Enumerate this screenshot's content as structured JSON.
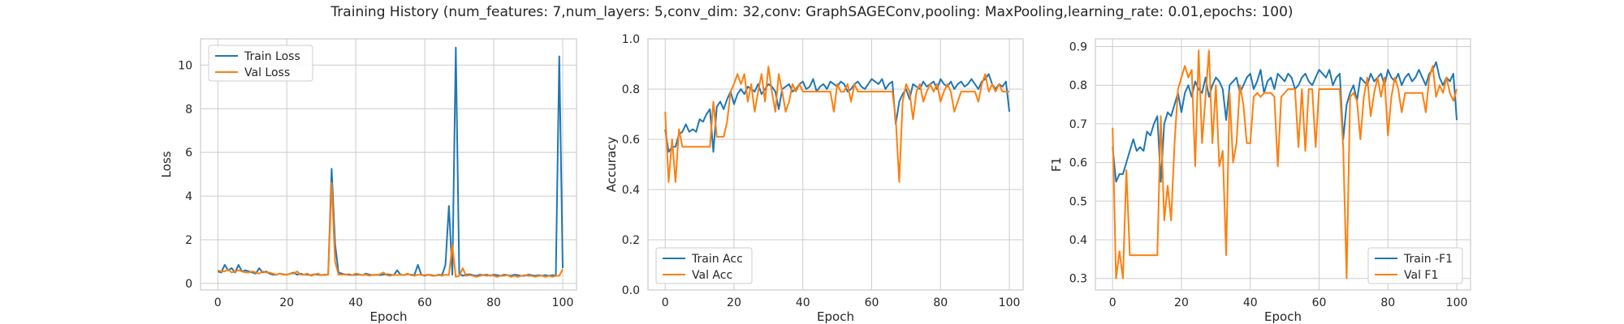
{
  "suptitle": "Training History (num_features: 7,num_layers: 5,conv_dim: 32,conv: GraphSAGEConv,pooling: MaxPooling,learning_rate: 0.01,epochs: 100)",
  "colors": {
    "train": "#1f77b4",
    "val": "#ff7f0e",
    "grid": "#cccccc",
    "spine": "#cccccc"
  },
  "chart_data": [
    {
      "type": "line",
      "xlabel": "Epoch",
      "ylabel": "Loss",
      "xlim": [
        -5,
        104
      ],
      "ylim": [
        -0.3,
        11.2
      ],
      "xticks": [
        0,
        20,
        40,
        60,
        80,
        100
      ],
      "yticks": [
        0,
        2,
        4,
        6,
        8,
        10
      ],
      "xtick_labels": [
        "0",
        "20",
        "40",
        "60",
        "80",
        "100"
      ],
      "ytick_labels": [
        "0",
        "2",
        "4",
        "6",
        "8",
        "10"
      ],
      "grid": true,
      "legend_position": "upper-left",
      "series": [
        {
          "name": "Train Loss",
          "values": [
            0.55,
            0.5,
            0.85,
            0.6,
            0.7,
            0.5,
            0.85,
            0.55,
            0.6,
            0.55,
            0.5,
            0.45,
            0.7,
            0.5,
            0.55,
            0.45,
            0.4,
            0.4,
            0.45,
            0.42,
            0.4,
            0.45,
            0.5,
            0.4,
            0.45,
            0.4,
            0.4,
            0.38,
            0.42,
            0.4,
            0.38,
            0.4,
            0.4,
            5.25,
            1.8,
            0.5,
            0.45,
            0.4,
            0.42,
            0.38,
            0.4,
            0.4,
            0.38,
            0.45,
            0.4,
            0.38,
            0.4,
            0.38,
            0.4,
            0.42,
            0.4,
            0.38,
            0.6,
            0.4,
            0.38,
            0.42,
            0.4,
            0.38,
            0.85,
            0.4,
            0.35,
            0.4,
            0.38,
            0.35,
            0.4,
            0.38,
            0.85,
            3.55,
            0.4,
            10.8,
            0.45,
            0.35,
            0.4,
            0.42,
            0.38,
            0.35,
            0.4,
            0.38,
            0.4,
            0.35,
            0.4,
            0.38,
            0.35,
            0.4,
            0.38,
            0.35,
            0.4,
            0.38,
            0.35,
            0.35,
            0.4,
            0.38,
            0.35,
            0.38,
            0.35,
            0.38,
            0.35,
            0.38,
            0.35,
            10.4,
            0.7
          ]
        },
        {
          "name": "Val Loss",
          "values": [
            0.6,
            0.55,
            0.55,
            0.65,
            0.5,
            0.55,
            0.6,
            0.55,
            0.5,
            0.5,
            0.55,
            0.5,
            0.45,
            0.55,
            0.5,
            0.5,
            0.45,
            0.4,
            0.45,
            0.4,
            0.4,
            0.45,
            0.45,
            0.55,
            0.4,
            0.4,
            0.45,
            0.35,
            0.4,
            0.45,
            0.38,
            0.38,
            0.4,
            4.6,
            1.0,
            0.4,
            0.4,
            0.42,
            0.38,
            0.38,
            0.45,
            0.42,
            0.38,
            0.4,
            0.35,
            0.4,
            0.38,
            0.42,
            0.5,
            0.38,
            0.35,
            0.4,
            0.38,
            0.4,
            0.38,
            0.45,
            0.38,
            0.35,
            0.4,
            0.38,
            0.38,
            0.4,
            0.35,
            0.35,
            0.38,
            0.35,
            0.4,
            0.38,
            1.75,
            0.3,
            0.35,
            0.7,
            0.35,
            0.38,
            0.35,
            0.3,
            0.35,
            0.38,
            0.35,
            0.38,
            0.35,
            0.3,
            0.35,
            0.35,
            0.38,
            0.3,
            0.35,
            0.3,
            0.35,
            0.38,
            0.35,
            0.35,
            0.3,
            0.35,
            0.35,
            0.3,
            0.35,
            0.3,
            0.35,
            0.35,
            0.65
          ]
        }
      ]
    },
    {
      "type": "line",
      "xlabel": "Epoch",
      "ylabel": "Accuracy",
      "xlim": [
        -5,
        104
      ],
      "ylim": [
        0.0,
        1.0
      ],
      "xticks": [
        0,
        20,
        40,
        60,
        80,
        100
      ],
      "yticks": [
        0.0,
        0.2,
        0.4,
        0.6,
        0.8,
        1.0
      ],
      "xtick_labels": [
        "0",
        "20",
        "40",
        "60",
        "80",
        "100"
      ],
      "ytick_labels": [
        "0.0",
        "0.2",
        "0.4",
        "0.6",
        "0.8",
        "1.0"
      ],
      "grid": true,
      "legend_position": "lower-left",
      "series": [
        {
          "name": "Train Acc",
          "values": [
            0.64,
            0.55,
            0.57,
            0.57,
            0.62,
            0.63,
            0.66,
            0.63,
            0.64,
            0.63,
            0.68,
            0.67,
            0.7,
            0.72,
            0.55,
            0.73,
            0.75,
            0.72,
            0.76,
            0.79,
            0.74,
            0.78,
            0.8,
            0.78,
            0.81,
            0.8,
            0.79,
            0.82,
            0.78,
            0.8,
            0.82,
            0.81,
            0.79,
            0.72,
            0.8,
            0.81,
            0.82,
            0.79,
            0.8,
            0.82,
            0.83,
            0.8,
            0.81,
            0.84,
            0.79,
            0.81,
            0.82,
            0.8,
            0.83,
            0.82,
            0.81,
            0.83,
            0.82,
            0.79,
            0.8,
            0.82,
            0.83,
            0.81,
            0.8,
            0.82,
            0.84,
            0.83,
            0.82,
            0.84,
            0.8,
            0.82,
            0.83,
            0.66,
            0.75,
            0.78,
            0.8,
            0.76,
            0.82,
            0.81,
            0.8,
            0.83,
            0.81,
            0.82,
            0.83,
            0.8,
            0.84,
            0.82,
            0.81,
            0.83,
            0.8,
            0.82,
            0.83,
            0.81,
            0.82,
            0.84,
            0.82,
            0.8,
            0.83,
            0.84,
            0.86,
            0.82,
            0.8,
            0.82,
            0.81,
            0.83,
            0.71
          ]
        },
        {
          "name": "Val Acc",
          "values": [
            0.71,
            0.43,
            0.6,
            0.43,
            0.64,
            0.57,
            0.57,
            0.57,
            0.57,
            0.57,
            0.57,
            0.57,
            0.57,
            0.57,
            0.75,
            0.61,
            0.61,
            0.61,
            0.67,
            0.79,
            0.82,
            0.86,
            0.82,
            0.86,
            0.75,
            0.82,
            0.71,
            0.79,
            0.86,
            0.75,
            0.89,
            0.79,
            0.71,
            0.86,
            0.79,
            0.71,
            0.75,
            0.82,
            0.79,
            0.82,
            0.79,
            0.79,
            0.79,
            0.79,
            0.79,
            0.79,
            0.79,
            0.79,
            0.79,
            0.71,
            0.82,
            0.79,
            0.79,
            0.82,
            0.75,
            0.82,
            0.79,
            0.79,
            0.79,
            0.79,
            0.79,
            0.79,
            0.79,
            0.79,
            0.79,
            0.79,
            0.79,
            0.68,
            0.43,
            0.75,
            0.82,
            0.79,
            0.68,
            0.79,
            0.82,
            0.75,
            0.79,
            0.82,
            0.79,
            0.82,
            0.75,
            0.79,
            0.82,
            0.79,
            0.71,
            0.75,
            0.79,
            0.79,
            0.79,
            0.79,
            0.79,
            0.75,
            0.82,
            0.86,
            0.79,
            0.82,
            0.79,
            0.82,
            0.79,
            0.79,
            0.79
          ]
        }
      ]
    },
    {
      "type": "line",
      "xlabel": "Epoch",
      "ylabel": "F1",
      "xlim": [
        -5,
        104
      ],
      "ylim": [
        0.27,
        0.92
      ],
      "xticks": [
        0,
        20,
        40,
        60,
        80,
        100
      ],
      "yticks": [
        0.3,
        0.4,
        0.5,
        0.6,
        0.7,
        0.8,
        0.9
      ],
      "xtick_labels": [
        "0",
        "20",
        "40",
        "60",
        "80",
        "100"
      ],
      "ytick_labels": [
        "0.3",
        "0.4",
        "0.5",
        "0.6",
        "0.7",
        "0.8",
        "0.9"
      ],
      "grid": true,
      "legend_position": "lower-right",
      "series": [
        {
          "name": "Train -F1",
          "values": [
            0.64,
            0.55,
            0.57,
            0.57,
            0.6,
            0.63,
            0.66,
            0.63,
            0.64,
            0.63,
            0.68,
            0.67,
            0.7,
            0.72,
            0.55,
            0.7,
            0.73,
            0.72,
            0.75,
            0.78,
            0.73,
            0.78,
            0.8,
            0.77,
            0.81,
            0.79,
            0.78,
            0.82,
            0.77,
            0.8,
            0.82,
            0.81,
            0.79,
            0.71,
            0.8,
            0.81,
            0.82,
            0.78,
            0.8,
            0.82,
            0.83,
            0.79,
            0.81,
            0.84,
            0.78,
            0.81,
            0.82,
            0.79,
            0.83,
            0.82,
            0.81,
            0.83,
            0.82,
            0.79,
            0.8,
            0.82,
            0.83,
            0.81,
            0.8,
            0.82,
            0.84,
            0.83,
            0.82,
            0.84,
            0.8,
            0.82,
            0.83,
            0.66,
            0.75,
            0.78,
            0.8,
            0.76,
            0.82,
            0.81,
            0.8,
            0.83,
            0.81,
            0.82,
            0.83,
            0.8,
            0.84,
            0.82,
            0.81,
            0.83,
            0.8,
            0.82,
            0.83,
            0.81,
            0.82,
            0.84,
            0.82,
            0.8,
            0.83,
            0.84,
            0.86,
            0.82,
            0.8,
            0.82,
            0.81,
            0.83,
            0.71
          ]
        },
        {
          "name": "Val F1",
          "values": [
            0.69,
            0.3,
            0.37,
            0.3,
            0.58,
            0.36,
            0.36,
            0.36,
            0.36,
            0.36,
            0.36,
            0.36,
            0.36,
            0.36,
            0.72,
            0.45,
            0.54,
            0.45,
            0.65,
            0.79,
            0.82,
            0.85,
            0.82,
            0.84,
            0.59,
            0.89,
            0.65,
            0.77,
            0.89,
            0.65,
            0.8,
            0.59,
            0.63,
            0.36,
            0.78,
            0.6,
            0.65,
            0.8,
            0.75,
            0.65,
            0.65,
            0.77,
            0.78,
            0.77,
            0.78,
            0.78,
            0.78,
            0.77,
            0.59,
            0.77,
            0.78,
            0.79,
            0.79,
            0.79,
            0.64,
            0.79,
            0.63,
            0.79,
            0.79,
            0.64,
            0.79,
            0.79,
            0.79,
            0.79,
            0.79,
            0.79,
            0.79,
            0.64,
            0.3,
            0.77,
            0.78,
            0.76,
            0.66,
            0.77,
            0.82,
            0.72,
            0.78,
            0.82,
            0.77,
            0.82,
            0.67,
            0.77,
            0.82,
            0.79,
            0.73,
            0.78,
            0.78,
            0.78,
            0.78,
            0.78,
            0.78,
            0.73,
            0.82,
            0.85,
            0.77,
            0.8,
            0.78,
            0.82,
            0.78,
            0.76,
            0.79
          ]
        }
      ]
    }
  ]
}
